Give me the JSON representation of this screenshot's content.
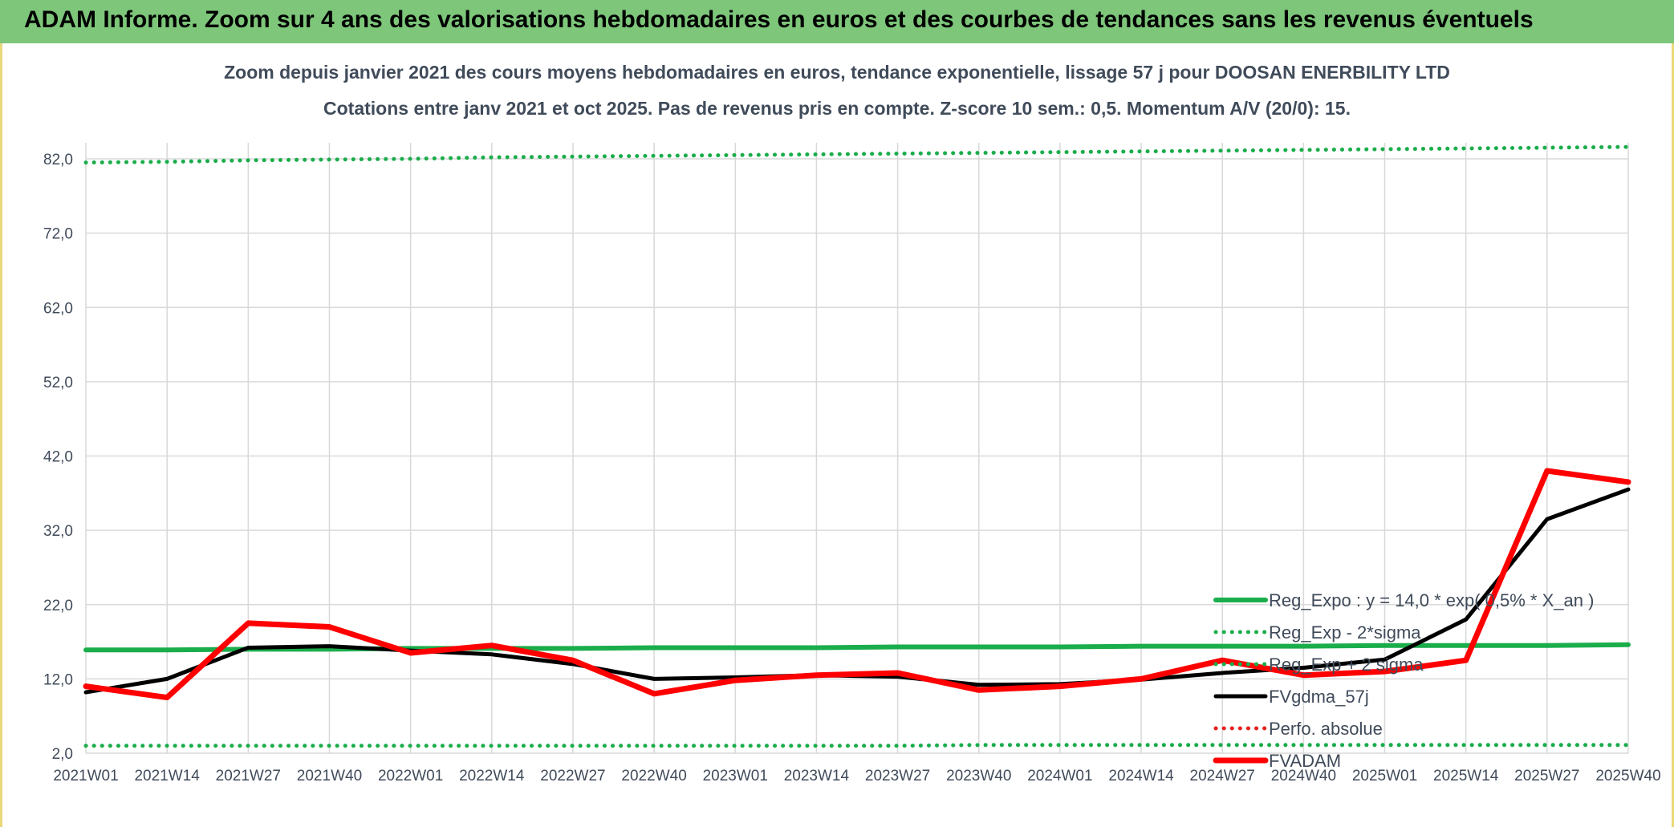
{
  "header": {
    "banner_title": "ADAM Informe. Zoom sur 4 ans des valorisations hebdomadaires en euros et des courbes de tendances sans les revenus éventuels"
  },
  "colors": {
    "banner_bg": "#7dc67a",
    "reg_expo": "#1aad4b",
    "sigma_lines": "#1aad4b",
    "fvgdma": "#000000",
    "perfo": "#e8201c",
    "fvadam": "#ff0000",
    "grid": "#d9d9d9",
    "text": "#404b5a"
  },
  "chart_data": {
    "type": "line",
    "title": "Zoom depuis janvier 2021 des cours moyens hebdomadaires en euros, tendance exponentielle, lissage 57 j pour DOOSAN ENERBILITY LTD",
    "subtitle": "Cotations entre janv 2021 et oct 2025. Pas de revenus pris en compte. Z-score 10 sem.: 0,5. Momentum A/V (20/0): 15.",
    "xlabel": "",
    "ylabel": "",
    "ylim": [
      2,
      82
    ],
    "yticks": [
      "82,0",
      "72,0",
      "62,0",
      "52,0",
      "42,0",
      "32,0",
      "22,0",
      "12,0",
      "2,0"
    ],
    "xticks": [
      "2021W01",
      "2021W14",
      "2021W27",
      "2021W40",
      "2022W01",
      "2022W14",
      "2022W27",
      "2022W40",
      "2023W01",
      "2023W14",
      "2023W27",
      "2023W40",
      "2024W01",
      "2024W14",
      "2024W27",
      "2024W40",
      "2025W01",
      "2025W14",
      "2025W27",
      "2025W40"
    ],
    "grid": true,
    "legend_position": "bottom-right",
    "series": [
      {
        "name": "Reg_Expo : y = 14,0 * exp( 0,5% *  X_an )",
        "style": "solid-thick-green",
        "values": [
          15.9,
          15.9,
          16.0,
          16.0,
          16.1,
          16.1,
          16.1,
          16.2,
          16.2,
          16.2,
          16.3,
          16.3,
          16.3,
          16.4,
          16.4,
          16.4,
          16.5,
          16.5,
          16.5,
          16.6
        ]
      },
      {
        "name": "Reg_Exp - 2*sigma",
        "style": "dotted-green",
        "values": [
          3.0,
          3.0,
          3.0,
          3.0,
          3.0,
          3.0,
          3.0,
          3.0,
          3.0,
          3.0,
          3.0,
          3.1,
          3.1,
          3.1,
          3.1,
          3.1,
          3.1,
          3.1,
          3.1,
          3.1
        ]
      },
      {
        "name": "Reg_Exp + 2 sigma",
        "style": "dotted-green",
        "values": [
          81.5,
          81.6,
          81.8,
          81.9,
          82.0,
          82.2,
          82.3,
          82.4,
          82.5,
          82.6,
          82.7,
          82.8,
          82.9,
          83.0,
          83.1,
          83.2,
          83.3,
          83.4,
          83.5,
          83.6
        ]
      },
      {
        "name": "FVgdma_57j",
        "style": "solid-black",
        "values": [
          10.2,
          12.0,
          16.2,
          16.4,
          15.8,
          15.3,
          14.0,
          12.0,
          12.2,
          12.5,
          12.3,
          11.2,
          11.3,
          11.9,
          12.8,
          13.5,
          14.6,
          20.0,
          33.5,
          37.5
        ]
      },
      {
        "name": "Perfo. absolue",
        "style": "dotted-red",
        "values": []
      },
      {
        "name": "FVADAM",
        "style": "solid-thick-red",
        "values": [
          11.0,
          9.5,
          19.5,
          19.0,
          15.5,
          16.5,
          14.5,
          10.0,
          11.8,
          12.5,
          12.8,
          10.5,
          11.0,
          12.0,
          14.5,
          12.5,
          13.0,
          14.5,
          40.0,
          38.5
        ]
      }
    ]
  }
}
